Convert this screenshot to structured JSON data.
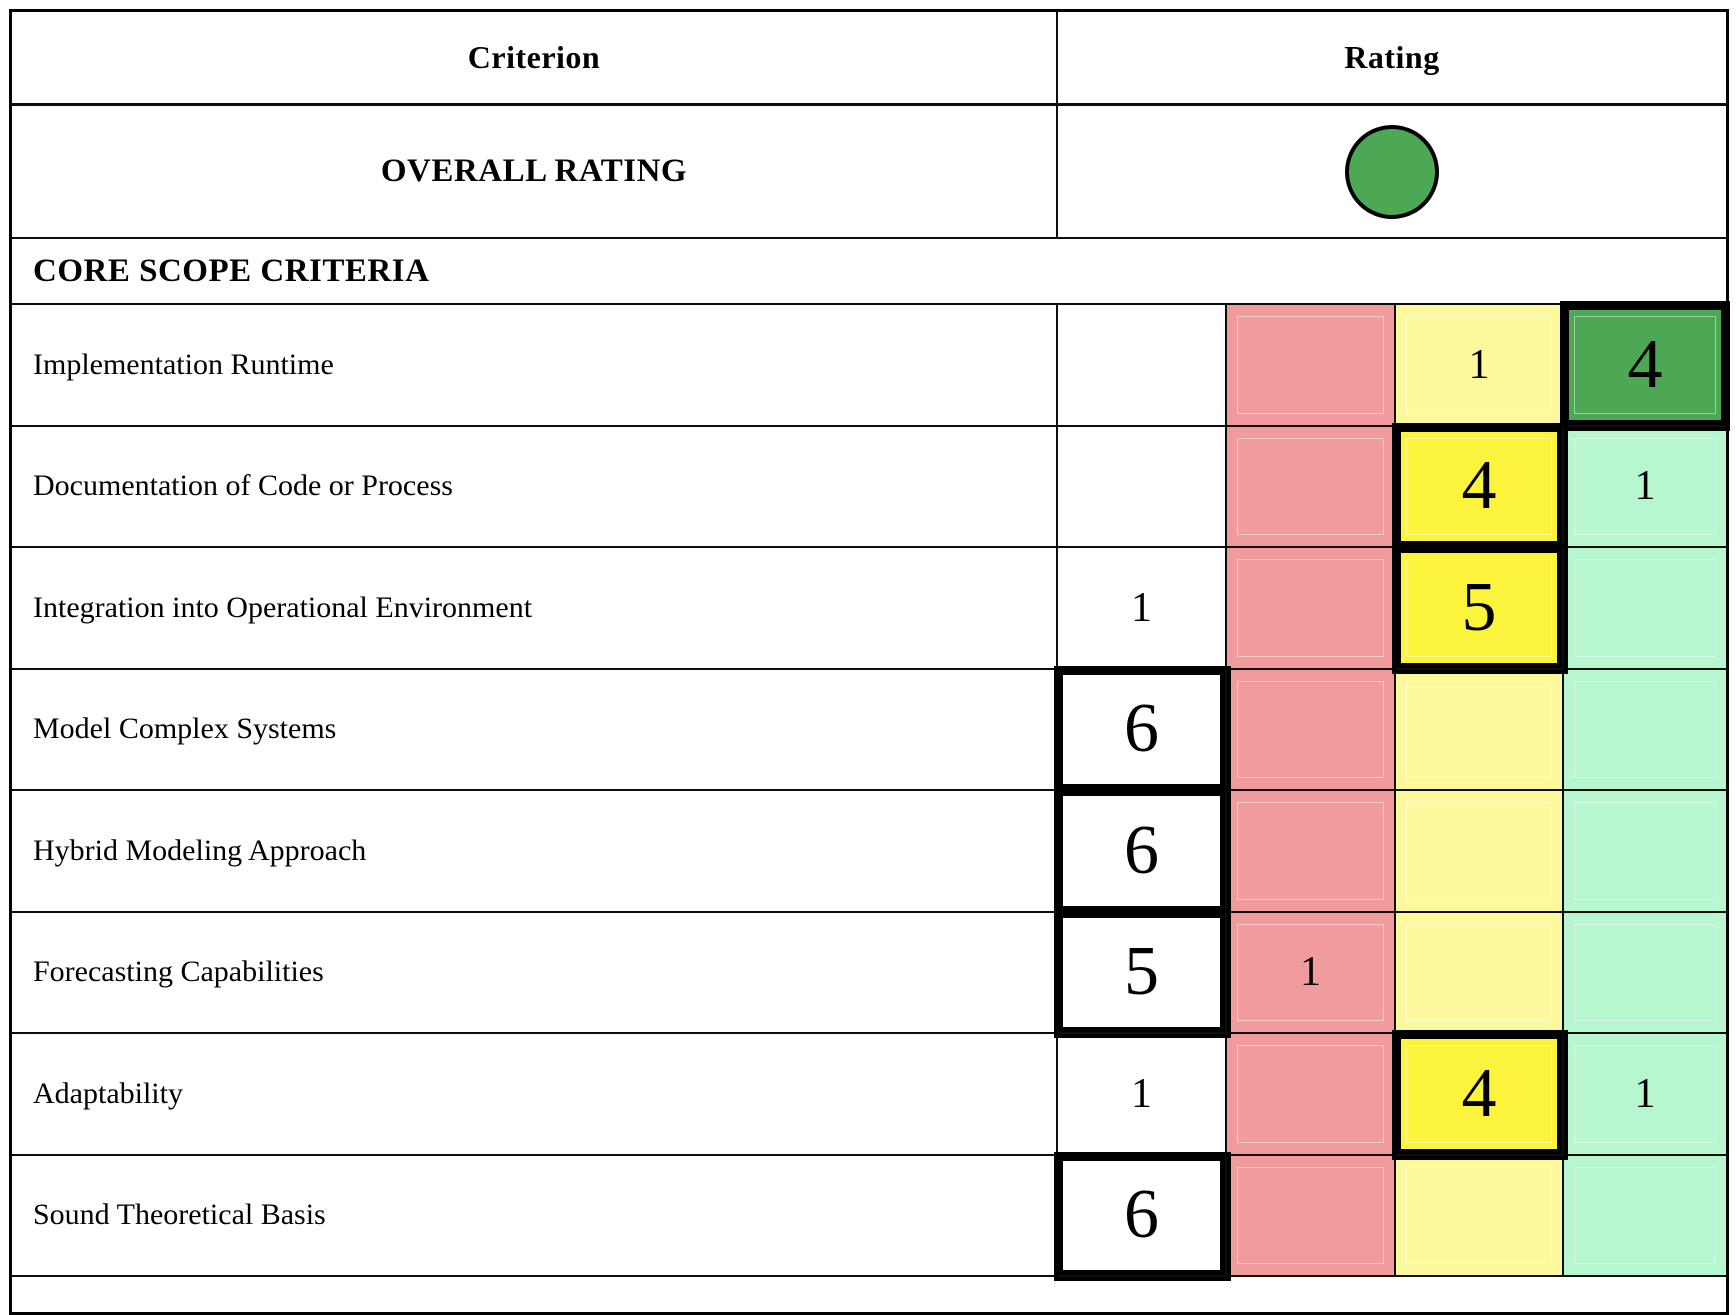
{
  "palette": {
    "band_red": "#F09C9C",
    "band_yellow_light": "#FBF99C",
    "highlight_yellow": "#FCF43C",
    "band_green_light": "#B7F7D0",
    "highlight_green_dark": "#4DA855",
    "overall_circle_green": "#4DA855",
    "grid_line": "#000000"
  },
  "table": {
    "header": {
      "criterion": "Criterion",
      "rating": "Rating"
    },
    "overall": {
      "label": "OVERALL RATING",
      "indicator": "green-circle"
    },
    "section": {
      "label": "CORE SCOPE CRITERIA"
    },
    "rating_bands": [
      "white",
      "red",
      "yellow",
      "green"
    ],
    "rows": [
      {
        "label": "Implementation Runtime",
        "cells": [
          {
            "value": "",
            "tone": "white",
            "highlighted": false
          },
          {
            "value": "",
            "tone": "red",
            "highlighted": false
          },
          {
            "value": "1",
            "tone": "yellow-light",
            "highlighted": false
          },
          {
            "value": "4",
            "tone": "green-dark",
            "highlighted": true
          }
        ]
      },
      {
        "label": "Documentation of Code or Process",
        "cells": [
          {
            "value": "",
            "tone": "white",
            "highlighted": false
          },
          {
            "value": "",
            "tone": "red",
            "highlighted": false
          },
          {
            "value": "4",
            "tone": "yellow-bright",
            "highlighted": true
          },
          {
            "value": "1",
            "tone": "green-light",
            "highlighted": false
          }
        ]
      },
      {
        "label": "Integration into Operational Environment",
        "cells": [
          {
            "value": "1",
            "tone": "white",
            "highlighted": false
          },
          {
            "value": "",
            "tone": "red",
            "highlighted": false
          },
          {
            "value": "5",
            "tone": "yellow-bright",
            "highlighted": true
          },
          {
            "value": "",
            "tone": "green-light",
            "highlighted": false
          }
        ]
      },
      {
        "label": "Model Complex Systems",
        "cells": [
          {
            "value": "6",
            "tone": "white",
            "highlighted": true
          },
          {
            "value": "",
            "tone": "red",
            "highlighted": false
          },
          {
            "value": "",
            "tone": "yellow-light",
            "highlighted": false
          },
          {
            "value": "",
            "tone": "green-light",
            "highlighted": false
          }
        ]
      },
      {
        "label": "Hybrid Modeling Approach",
        "cells": [
          {
            "value": "6",
            "tone": "white",
            "highlighted": true
          },
          {
            "value": "",
            "tone": "red",
            "highlighted": false
          },
          {
            "value": "",
            "tone": "yellow-light",
            "highlighted": false
          },
          {
            "value": "",
            "tone": "green-light",
            "highlighted": false
          }
        ]
      },
      {
        "label": "Forecasting Capabilities",
        "cells": [
          {
            "value": "5",
            "tone": "white",
            "highlighted": true
          },
          {
            "value": "1",
            "tone": "red",
            "highlighted": false
          },
          {
            "value": "",
            "tone": "yellow-light",
            "highlighted": false
          },
          {
            "value": "",
            "tone": "green-light",
            "highlighted": false
          }
        ]
      },
      {
        "label": "Adaptability",
        "cells": [
          {
            "value": "1",
            "tone": "white",
            "highlighted": false
          },
          {
            "value": "",
            "tone": "red",
            "highlighted": false
          },
          {
            "value": "4",
            "tone": "yellow-bright",
            "highlighted": true
          },
          {
            "value": "1",
            "tone": "green-light",
            "highlighted": false
          }
        ]
      },
      {
        "label": "Sound Theoretical Basis",
        "cells": [
          {
            "value": "6",
            "tone": "white",
            "highlighted": true
          },
          {
            "value": "",
            "tone": "red",
            "highlighted": false
          },
          {
            "value": "",
            "tone": "yellow-light",
            "highlighted": false
          },
          {
            "value": "",
            "tone": "green-light",
            "highlighted": false
          }
        ]
      }
    ]
  }
}
